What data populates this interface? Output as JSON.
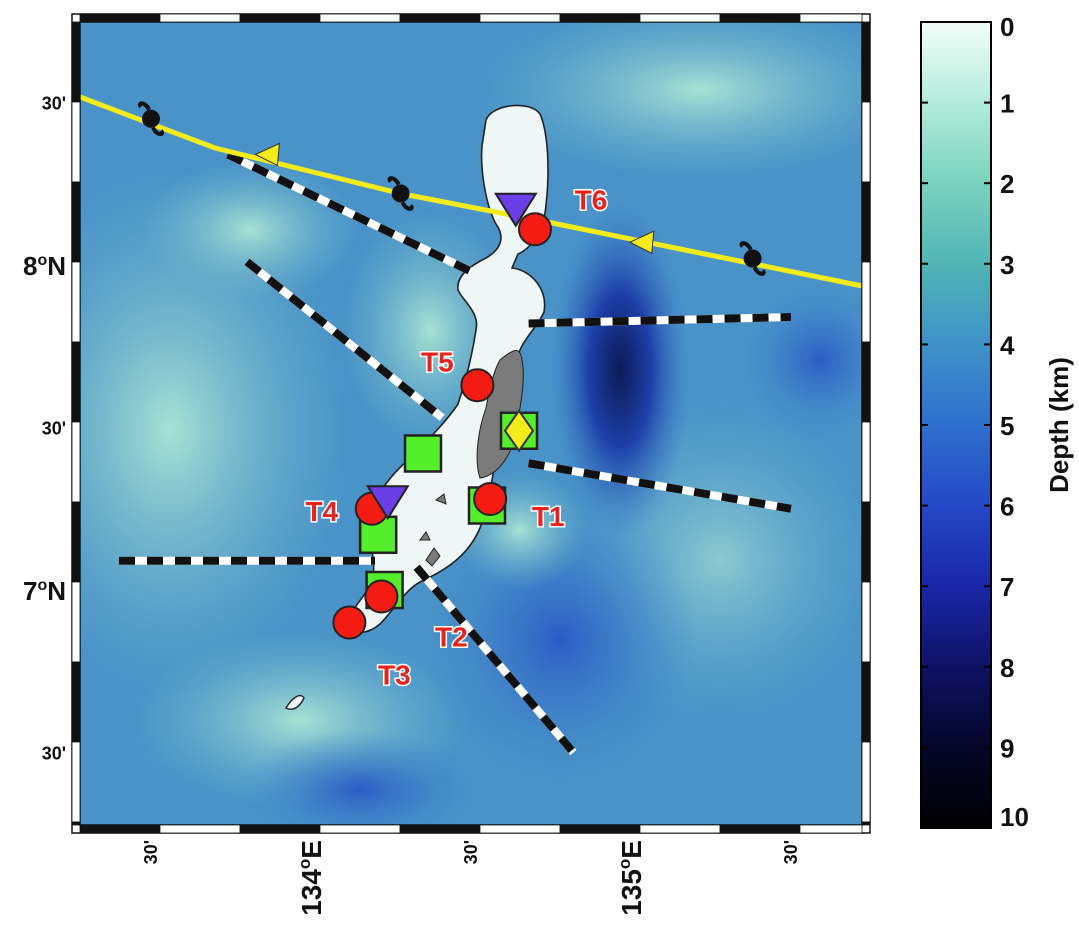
{
  "map": {
    "lat_ticks": [
      {
        "label": "30'",
        "deg": 8.5,
        "big": false
      },
      {
        "label": "8",
        "sup": "o",
        "suffix": "N",
        "deg": 8.0,
        "big": true
      },
      {
        "label": "30'",
        "deg": 7.5,
        "big": false
      },
      {
        "label": "7",
        "sup": "o",
        "suffix": "N",
        "deg": 7.0,
        "big": true
      },
      {
        "label": "30'",
        "deg": 6.5,
        "big": false
      }
    ],
    "lon_ticks": [
      {
        "label": "30'",
        "deg": 133.5,
        "big": false
      },
      {
        "label": "134",
        "sup": "o",
        "suffix": "E",
        "deg": 134.0,
        "big": true
      },
      {
        "label": "30'",
        "deg": 134.5,
        "big": false
      },
      {
        "label": "135",
        "sup": "o",
        "suffix": "E",
        "deg": 135.0,
        "big": true
      },
      {
        "label": "30'",
        "deg": 135.5,
        "big": false
      }
    ],
    "sites": [
      {
        "name": "T1",
        "lon": 134.56,
        "lat": 7.28
      },
      {
        "name": "T2",
        "lon": 134.22,
        "lat": 6.98
      },
      {
        "name": "T3",
        "lon": 134.12,
        "lat": 6.9
      },
      {
        "name": "T4",
        "lon": 134.19,
        "lat": 7.25
      },
      {
        "name": "T5",
        "lon": 134.52,
        "lat": 7.63
      },
      {
        "name": "T6",
        "lon": 134.7,
        "lat": 8.11
      }
    ],
    "green_squares": [
      {
        "lon": 134.65,
        "lat": 7.49
      },
      {
        "lon": 134.35,
        "lat": 7.42
      },
      {
        "lon": 134.55,
        "lat": 7.26
      },
      {
        "lon": 134.21,
        "lat": 7.17
      },
      {
        "lon": 134.23,
        "lat": 7.0
      }
    ],
    "diamond": {
      "lon": 134.65,
      "lat": 7.49
    },
    "triangles_down": [
      {
        "lon": 134.64,
        "lat": 8.17
      },
      {
        "lon": 134.24,
        "lat": 7.27
      }
    ],
    "typhoon_track": {
      "points": [
        [
          133.27,
          8.52
        ],
        [
          133.7,
          8.36
        ],
        [
          134.28,
          8.22
        ],
        [
          134.75,
          8.13
        ],
        [
          135.2,
          8.04
        ],
        [
          135.7,
          7.94
        ],
        [
          136.2,
          7.85
        ]
      ],
      "typhoon_symbols": [
        [
          133.5,
          8.45
        ],
        [
          134.28,
          8.22
        ],
        [
          135.38,
          8.02
        ]
      ],
      "arrows": [
        [
          133.87,
          8.34
        ],
        [
          135.04,
          8.07
        ]
      ]
    },
    "transects": [
      {
        "from": [
          133.74,
          8.34
        ],
        "to": [
          134.5,
          7.98
        ]
      },
      {
        "from": [
          133.8,
          8.01
        ],
        "to": [
          134.41,
          7.53
        ]
      },
      {
        "from": [
          134.68,
          7.82
        ],
        "to": [
          135.5,
          7.84
        ]
      },
      {
        "from": [
          134.68,
          7.39
        ],
        "to": [
          135.5,
          7.25
        ]
      },
      {
        "from": [
          133.4,
          7.09
        ],
        "to": [
          134.2,
          7.09
        ]
      },
      {
        "from": [
          134.33,
          7.07
        ],
        "to": [
          134.82,
          6.5
        ]
      }
    ]
  },
  "colorbar": {
    "label": "Depth (km)",
    "ticks": [
      "0",
      "1",
      "2",
      "3",
      "4",
      "5",
      "6",
      "7",
      "8",
      "9",
      "10"
    ],
    "colors": [
      "#eefcf7",
      "#b2e8d8",
      "#76ceb8",
      "#4fb0b3",
      "#3b8ac9",
      "#2d63c6",
      "#2138b6",
      "#15187a",
      "#090a35",
      "#000000"
    ]
  }
}
